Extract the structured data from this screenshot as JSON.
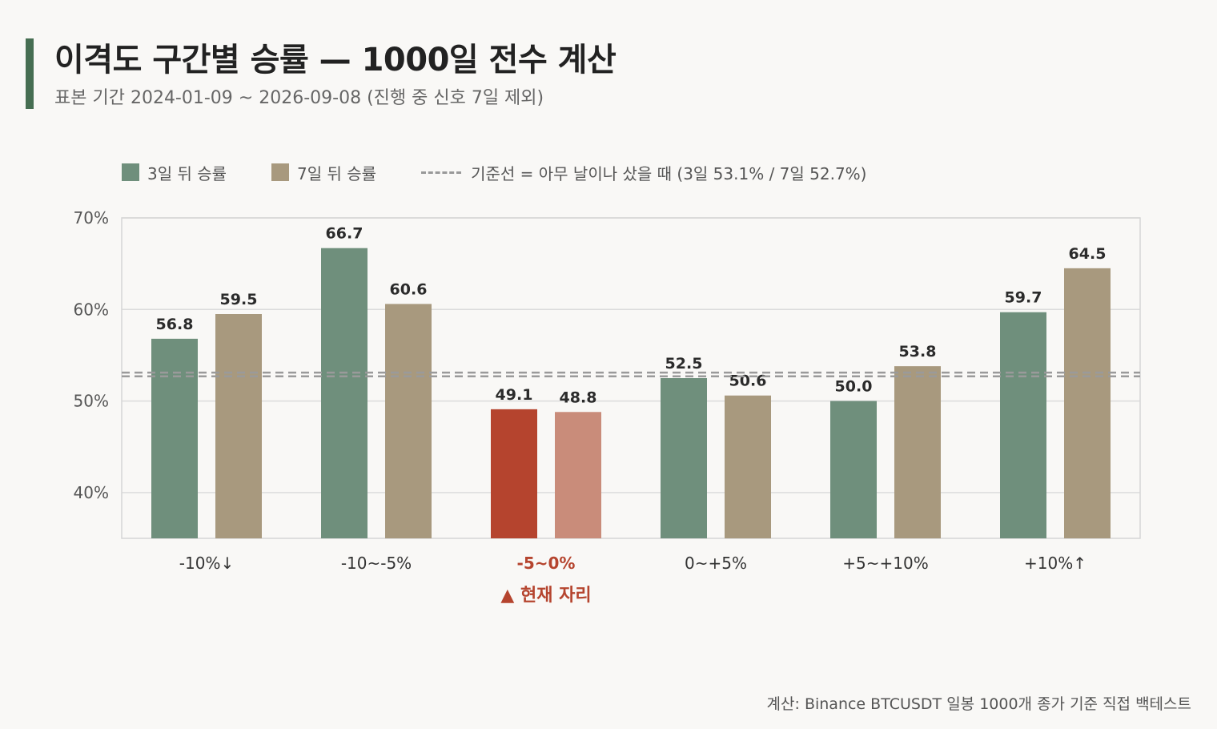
{
  "header": {
    "title": "이격도 구간별 승률 — 1000일 전수 계산",
    "subtitle": "표본 기간 2024-01-09 ~ 2026-09-08 (진행 중 신호 7일 제외)"
  },
  "legend": {
    "series3": "3일 뒤 승률",
    "series7": "7일 뒤 승률",
    "baseline": "기준선 = 아무 날이나 샀을 때 (3일 53.1% / 7일 52.7%)"
  },
  "colors": {
    "series3": "#6f8f7c",
    "series7": "#a8997e",
    "highlight3": "#b5442e",
    "highlight7": "#c98c7a",
    "highlightText": "#b5442e",
    "accent": "#466e52"
  },
  "chart_data": {
    "type": "bar",
    "categories": [
      "-10%↓",
      "-10~-5%",
      "-5~0%",
      "0~+5%",
      "+5~+10%",
      "+10%↑"
    ],
    "series": [
      {
        "name": "3일 뒤 승률",
        "values": [
          56.8,
          66.7,
          49.1,
          52.5,
          50.0,
          59.7
        ]
      },
      {
        "name": "7일 뒤 승률",
        "values": [
          59.5,
          60.6,
          48.8,
          50.6,
          53.8,
          64.5
        ]
      }
    ],
    "value_labels": [
      [
        "56.8",
        "66.7",
        "49.1",
        "52.5",
        "50.0",
        "59.7"
      ],
      [
        "59.5",
        "60.6",
        "48.8",
        "50.6",
        "53.8",
        "64.5"
      ]
    ],
    "baselines": [
      53.1,
      52.7
    ],
    "ylim": [
      35,
      70
    ],
    "yticks": [
      40,
      50,
      60,
      70
    ],
    "ytick_labels": [
      "40%",
      "50%",
      "60%",
      "70%"
    ],
    "highlight_index": 2,
    "highlight_note": "▲ 현재 자리",
    "grid": true,
    "legend_position": "top-left"
  },
  "footer": {
    "note": "계산: Binance BTCUSDT 일봉 1000개 종가 기준 직접 백테스트"
  }
}
